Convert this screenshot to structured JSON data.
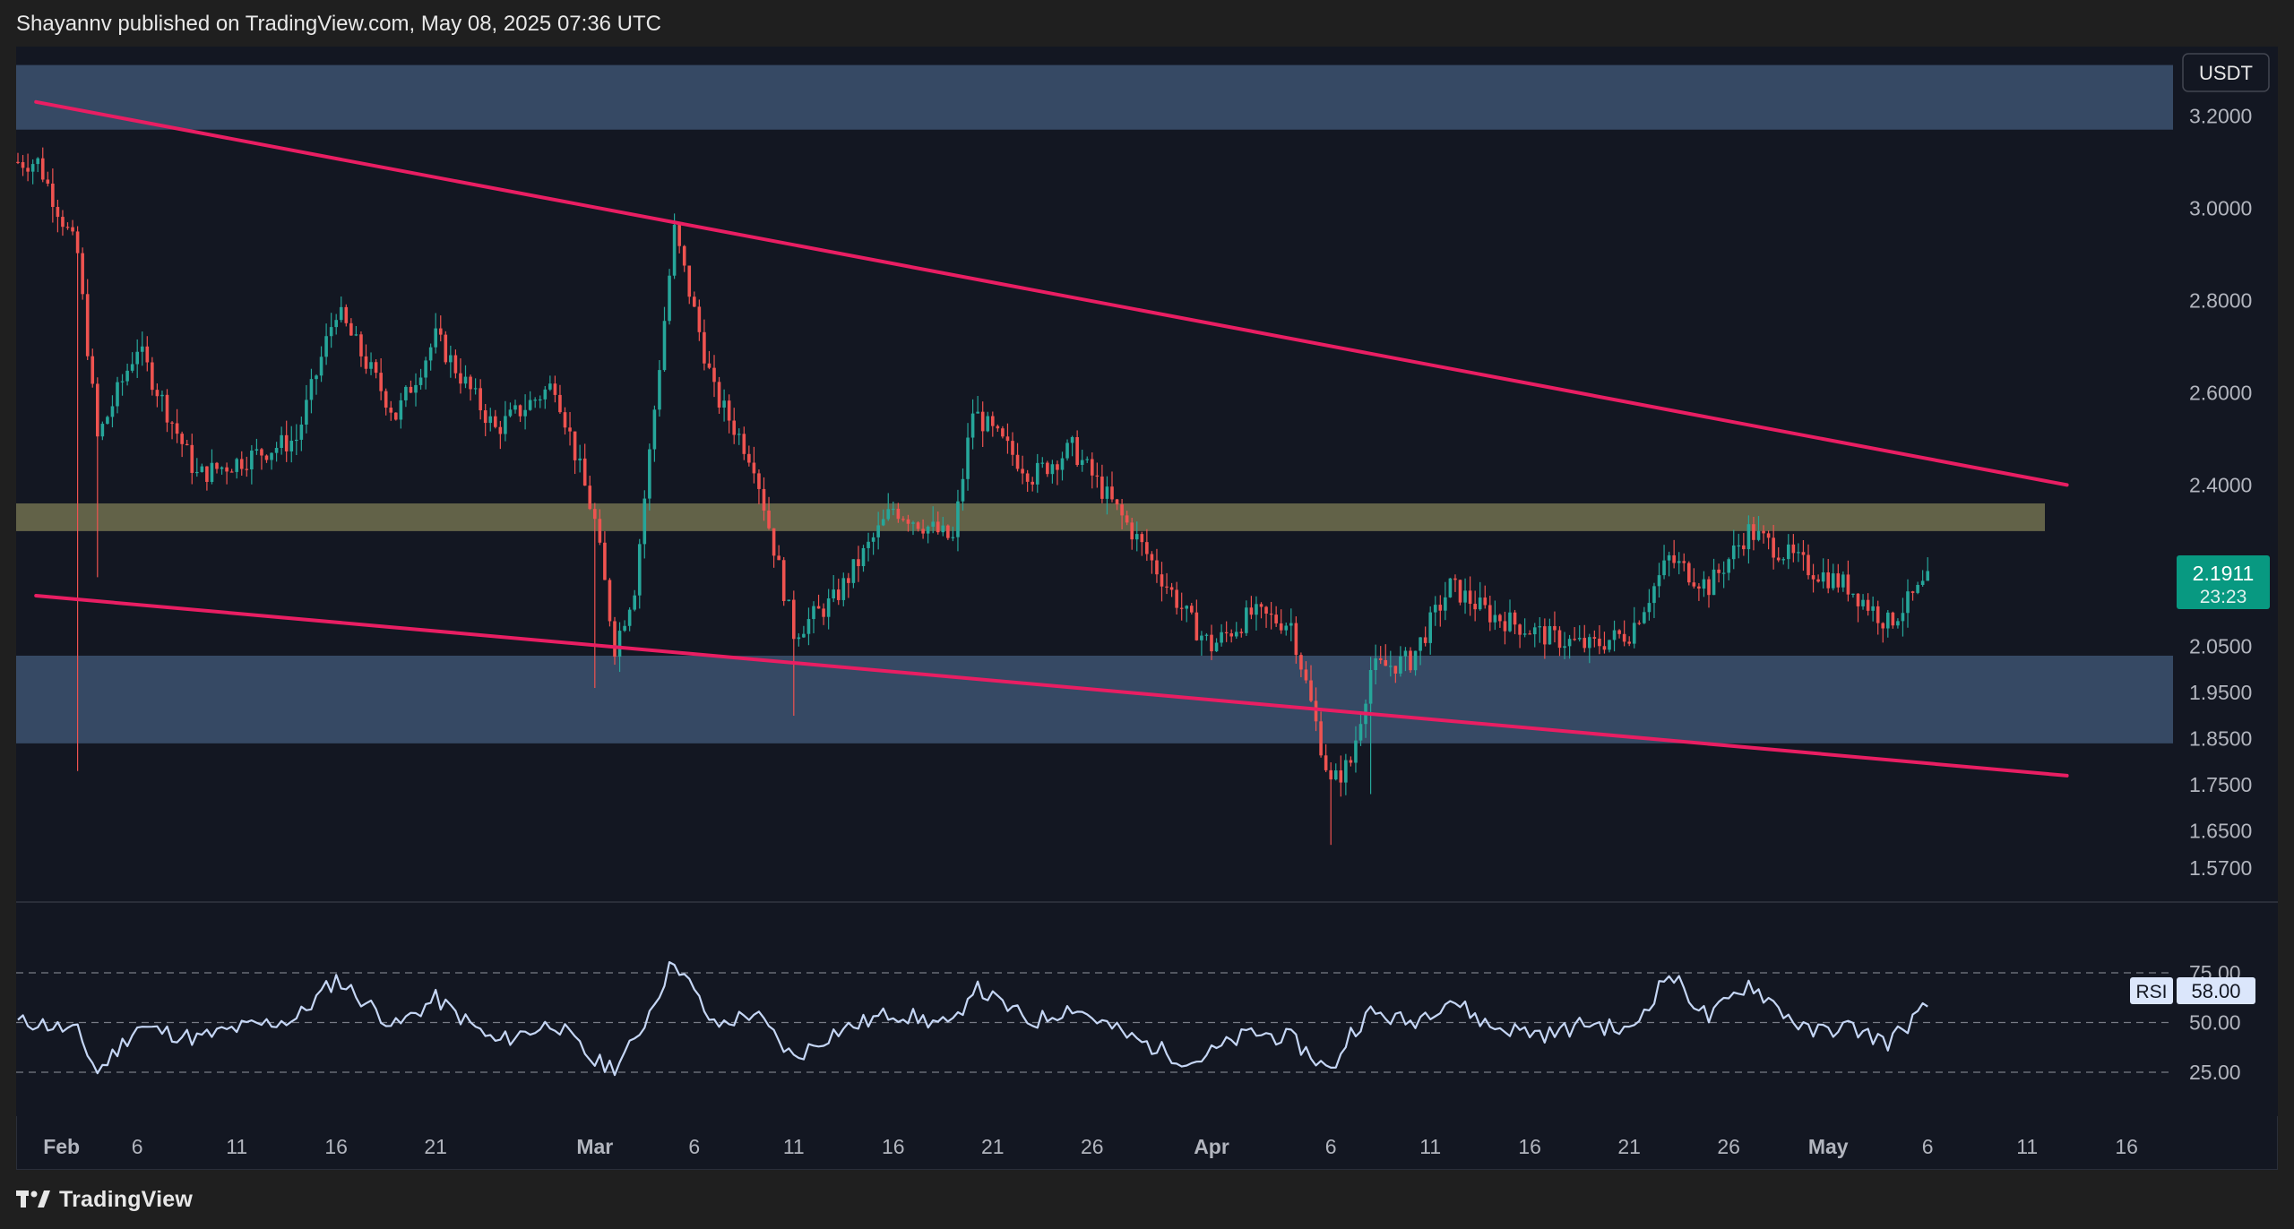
{
  "header": {
    "publisher_line": "Shayannv published on TradingView.com, May 08, 2025 07:36 UTC"
  },
  "footer": {
    "brand": "TradingView"
  },
  "colors": {
    "background": "#131722",
    "zone_blue": "#3d5270",
    "zone_olive": "#6b6a4d",
    "trendline": "#e91e63",
    "candle_up": "#26a69a",
    "candle_down": "#ef5350",
    "rsi_line": "#c5d6f5",
    "last_price_bg": "#089981"
  },
  "chart_data": [
    {
      "type": "candlestick",
      "quote_currency": "USDT",
      "y_ticks": [
        "3.2000",
        "3.0000",
        "2.8000",
        "2.6000",
        "2.4000",
        "2.0500",
        "1.9500",
        "1.8500",
        "1.7500",
        "1.6500",
        "1.5700"
      ],
      "x_ticks": [
        "Feb",
        "6",
        "11",
        "16",
        "21",
        "Mar",
        "6",
        "11",
        "16",
        "21",
        "26",
        "Apr",
        "6",
        "11",
        "16",
        "21",
        "26",
        "May",
        "6",
        "11",
        "16"
      ],
      "last_price": {
        "value": "2.1911",
        "countdown": "23:23"
      },
      "zones": [
        {
          "kind": "supply",
          "from": 3.17,
          "to": 3.31
        },
        {
          "kind": "support-resistance",
          "from": 2.3,
          "to": 2.36
        },
        {
          "kind": "demand",
          "from": 1.84,
          "to": 2.03
        }
      ],
      "trendlines": [
        {
          "name": "upper",
          "from": [
            "Feb 1",
            3.23
          ],
          "to": [
            "May 14",
            2.4
          ]
        },
        {
          "name": "lower",
          "from": [
            "Feb 1",
            2.16
          ],
          "to": [
            "May 14",
            1.77
          ]
        }
      ],
      "series": [
        {
          "x": [
            "Feb 1",
            "Feb 3",
            "Feb 4",
            "Feb 6",
            "Feb 9",
            "Feb 11",
            "Feb 14",
            "Feb 16",
            "Feb 19",
            "Feb 21",
            "Feb 24",
            "Feb 27",
            "Mar 1",
            "Mar 2",
            "Mar 3",
            "Mar 5",
            "Mar 7",
            "Mar 9",
            "Mar 11",
            "Mar 13",
            "Mar 16",
            "Mar 19",
            "Mar 20",
            "Mar 23",
            "Mar 25",
            "Mar 28",
            "Mar 31",
            "Apr 1",
            "Apr 3",
            "Apr 5",
            "Apr 7",
            "Apr 8",
            "Apr 9",
            "Apr 11",
            "Apr 13",
            "Apr 15",
            "Apr 18",
            "Apr 20",
            "Apr 22",
            "Apr 24",
            "Apr 26",
            "Apr 28",
            "May 1",
            "May 3",
            "May 5",
            "May 7"
          ],
          "close": [
            3.1,
            2.9,
            2.5,
            2.7,
            2.42,
            2.45,
            2.5,
            2.78,
            2.55,
            2.72,
            2.52,
            2.62,
            2.32,
            2.05,
            2.18,
            2.95,
            2.6,
            2.45,
            2.08,
            2.15,
            2.35,
            2.28,
            2.56,
            2.42,
            2.48,
            2.3,
            2.1,
            2.05,
            2.12,
            2.1,
            1.75,
            1.8,
            2.0,
            2.02,
            2.18,
            2.12,
            2.07,
            2.05,
            2.08,
            2.24,
            2.18,
            2.3,
            2.22,
            2.18,
            2.1,
            2.19
          ]
        }
      ]
    },
    {
      "type": "line",
      "indicator": "RSI",
      "value": "58.00",
      "y_ticks": [
        "75.00",
        "50.00",
        "25.00"
      ],
      "guides": [
        75,
        50,
        25
      ],
      "x": [
        "Feb 1",
        "Feb 3",
        "Feb 4",
        "Feb 6",
        "Feb 9",
        "Feb 11",
        "Feb 14",
        "Feb 16",
        "Feb 19",
        "Feb 21",
        "Feb 24",
        "Feb 27",
        "Mar 1",
        "Mar 2",
        "Mar 3",
        "Mar 5",
        "Mar 7",
        "Mar 9",
        "Mar 11",
        "Mar 13",
        "Mar 16",
        "Mar 19",
        "Mar 20",
        "Mar 23",
        "Mar 25",
        "Mar 28",
        "Mar 31",
        "Apr 1",
        "Apr 3",
        "Apr 5",
        "Apr 7",
        "Apr 8",
        "Apr 9",
        "Apr 11",
        "Apr 13",
        "Apr 15",
        "Apr 18",
        "Apr 20",
        "Apr 22",
        "Apr 24",
        "Apr 26",
        "Apr 28",
        "May 1",
        "May 3",
        "May 5",
        "May 7"
      ],
      "values": [
        50,
        45,
        25,
        48,
        42,
        47,
        52,
        72,
        48,
        62,
        40,
        50,
        30,
        28,
        40,
        82,
        48,
        55,
        32,
        45,
        55,
        48,
        68,
        50,
        58,
        42,
        30,
        35,
        45,
        42,
        25,
        45,
        55,
        50,
        62,
        48,
        44,
        50,
        45,
        75,
        52,
        70,
        45,
        48,
        40,
        58
      ]
    }
  ]
}
